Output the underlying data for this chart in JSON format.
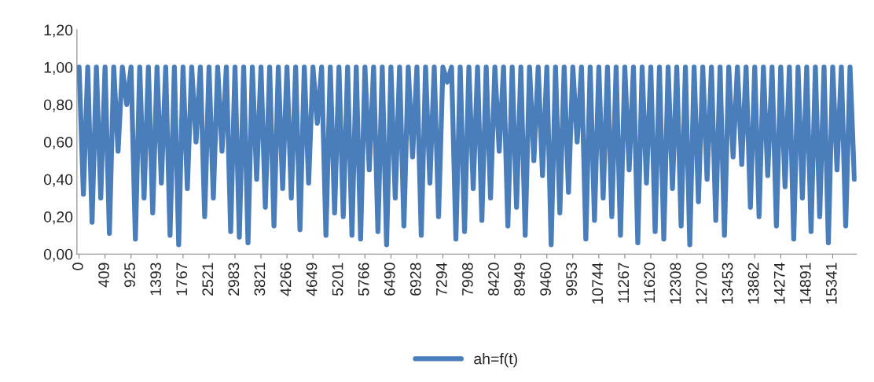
{
  "chart_data": {
    "type": "line",
    "categories": [
      "0",
      null,
      null,
      null,
      null,
      null,
      "409",
      null,
      null,
      null,
      null,
      null,
      "925",
      null,
      null,
      null,
      null,
      null,
      "1393",
      null,
      null,
      null,
      null,
      null,
      "1767",
      null,
      null,
      null,
      null,
      null,
      "2521",
      null,
      null,
      null,
      null,
      null,
      "2983",
      null,
      null,
      null,
      null,
      null,
      "3821",
      null,
      null,
      null,
      null,
      null,
      "4266",
      null,
      null,
      null,
      null,
      null,
      "4649",
      null,
      null,
      null,
      null,
      null,
      "5201",
      null,
      null,
      null,
      null,
      null,
      "5766",
      null,
      null,
      null,
      null,
      null,
      "6490",
      null,
      null,
      null,
      null,
      null,
      "6928",
      null,
      null,
      null,
      null,
      null,
      "7294",
      null,
      null,
      null,
      null,
      null,
      "7908",
      null,
      null,
      null,
      null,
      null,
      "8420",
      null,
      null,
      null,
      null,
      null,
      "8949",
      null,
      null,
      null,
      null,
      null,
      "9460",
      null,
      null,
      null,
      null,
      null,
      "9953",
      null,
      null,
      null,
      null,
      null,
      "10744",
      null,
      null,
      null,
      null,
      null,
      "11267",
      null,
      null,
      null,
      null,
      null,
      "11620",
      null,
      null,
      null,
      null,
      null,
      "12308",
      null,
      null,
      null,
      null,
      null,
      "12700",
      null,
      null,
      null,
      null,
      null,
      "13453",
      null,
      null,
      null,
      null,
      null,
      "13862",
      null,
      null,
      null,
      null,
      null,
      "14274",
      null,
      null,
      null,
      null,
      null,
      "14891",
      null,
      null,
      null,
      null,
      null,
      "15341",
      null,
      null,
      null,
      null,
      null
    ],
    "series": [
      {
        "name": "ah=f(t)",
        "color": "#4a7ebb",
        "values": [
          1,
          0.32,
          1,
          0.17,
          1,
          0.3,
          1,
          0.11,
          1,
          0.55,
          1,
          0.8,
          1,
          0.08,
          1,
          0.3,
          1,
          0.22,
          1,
          0.38,
          1,
          0.1,
          1,
          0.05,
          1,
          0.35,
          1,
          0.6,
          1,
          0.2,
          1,
          0.3,
          1,
          0.55,
          1,
          0.12,
          1,
          0.09,
          1,
          0.06,
          1,
          0.4,
          1,
          0.25,
          1,
          0.15,
          1,
          0.35,
          1,
          0.3,
          1,
          0.13,
          1,
          0.38,
          1,
          0.7,
          1,
          0.1,
          1,
          0.22,
          1,
          0.2,
          1,
          0.1,
          1,
          0.08,
          1,
          0.45,
          1,
          0.12,
          1,
          0.05,
          1,
          0.3,
          1,
          0.15,
          1,
          0.52,
          1,
          0.1,
          1,
          0.38,
          1,
          0.2,
          1,
          0.92,
          1,
          0.08,
          1,
          0.12,
          1,
          0.35,
          1,
          0.18,
          1,
          0.3,
          1,
          0.55,
          1,
          0.15,
          1,
          0.25,
          1,
          0.1,
          1,
          0.5,
          1,
          0.42,
          1,
          0.05,
          1,
          0.22,
          1,
          0.33,
          1,
          0.6,
          1,
          0.08,
          1,
          0.18,
          1,
          0.3,
          1,
          0.2,
          1,
          0.1,
          1,
          0.45,
          1,
          0.06,
          1,
          0.38,
          1,
          0.12,
          1,
          0.08,
          1,
          0.35,
          1,
          0.15,
          1,
          0.05,
          1,
          0.28,
          1,
          0.4,
          1,
          0.18,
          1,
          0.1,
          1,
          0.52,
          1,
          0.48,
          1,
          0.25,
          1,
          0.2,
          1,
          0.42,
          1,
          0.15,
          1,
          0.36,
          1,
          0.08,
          1,
          0.3,
          1,
          0.12,
          1,
          0.2,
          1,
          0.06,
          1,
          0.45,
          1,
          0.15,
          1,
          0.4
        ]
      }
    ],
    "ylim": [
      0,
      1.2
    ],
    "yticks": [
      {
        "value": 0,
        "label": "0,00"
      },
      {
        "value": 0.2,
        "label": "0,20"
      },
      {
        "value": 0.4,
        "label": "0,40"
      },
      {
        "value": 0.6,
        "label": "0,60"
      },
      {
        "value": 0.8,
        "label": "0,80"
      },
      {
        "value": 1.0,
        "label": "1,00"
      },
      {
        "value": 1.2,
        "label": "1,20"
      }
    ],
    "grid": false,
    "legend": "bottom",
    "marker": "none",
    "line_style": "solid"
  }
}
